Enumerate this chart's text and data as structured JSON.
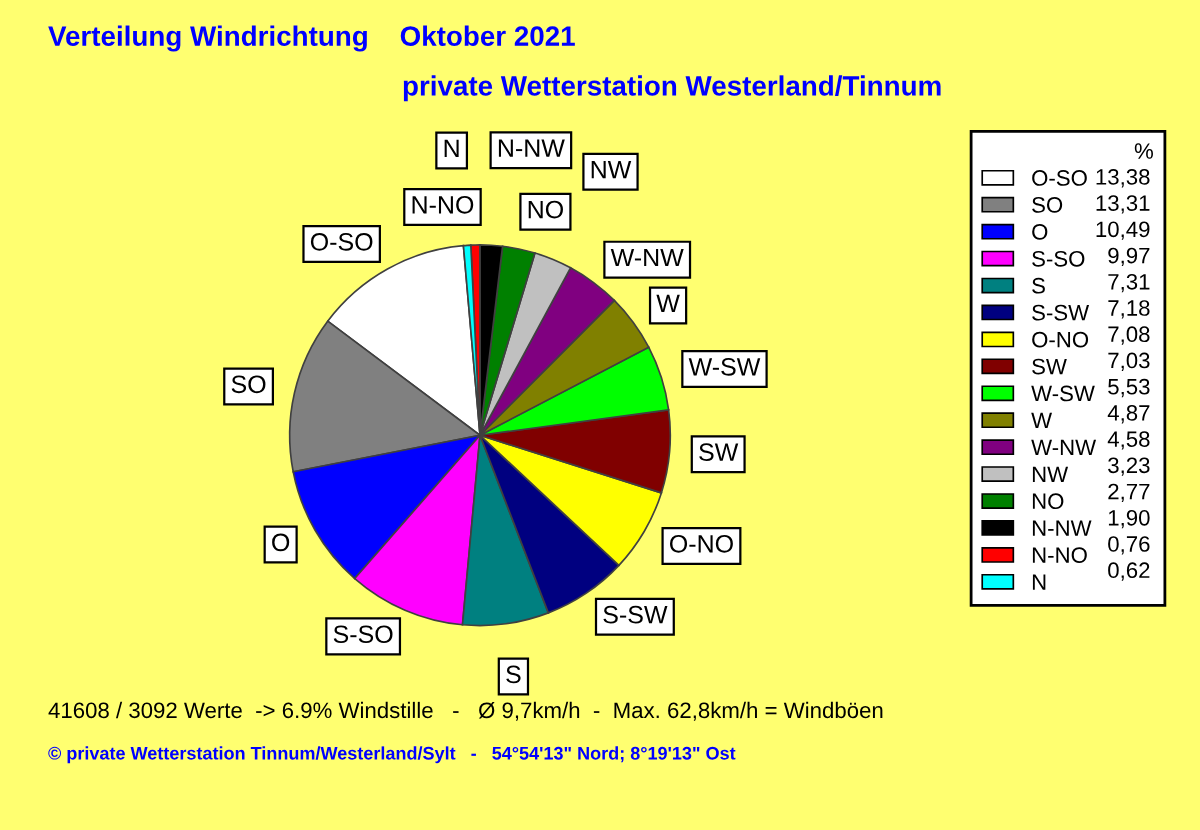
{
  "chart_data": {
    "type": "pie",
    "title": "Verteilung Windrichtung    Oktober 2021",
    "subtitle": "private Wetterstation Westerland/Tinnum",
    "legend_title": "%",
    "categories": [
      "O-SO",
      "SO",
      "O",
      "S-SO",
      "S",
      "S-SW",
      "O-NO",
      "SW",
      "W-SW",
      "W",
      "W-NW",
      "NW",
      "NO",
      "N-NW",
      "N-NO",
      "N"
    ],
    "values": [
      13.38,
      13.31,
      10.49,
      9.97,
      7.31,
      7.18,
      7.08,
      7.03,
      5.53,
      4.87,
      4.58,
      3.23,
      2.77,
      1.9,
      0.76,
      0.62
    ],
    "colors": [
      "#ffffff",
      "#808080",
      "#0000ff",
      "#ff00ff",
      "#008080",
      "#000080",
      "#ffff00",
      "#800000",
      "#00ff00",
      "#808000",
      "#800080",
      "#c0c0c0",
      "#008000",
      "#000000",
      "#ff0000",
      "#00ffff"
    ],
    "value_labels": [
      "13,38",
      "13,31",
      "10,49",
      "9,97",
      "7,31",
      "7,18",
      "7,08",
      "7,03",
      "5,53",
      "4,87",
      "4,58",
      "3,23",
      "2,77",
      "1,90",
      "0,76",
      "0,62"
    ],
    "legend": "right",
    "annotations": [
      "41608 / 3092 Werte  -> 6.9% Windstille   -   Ø 9,7km/h  -  Max. 62,8km/h = Windböen",
      "© private Wetterstation Tinnum/Westerland/Sylt   -   54°54'13\" Nord; 8°19'13\" Ost"
    ]
  }
}
